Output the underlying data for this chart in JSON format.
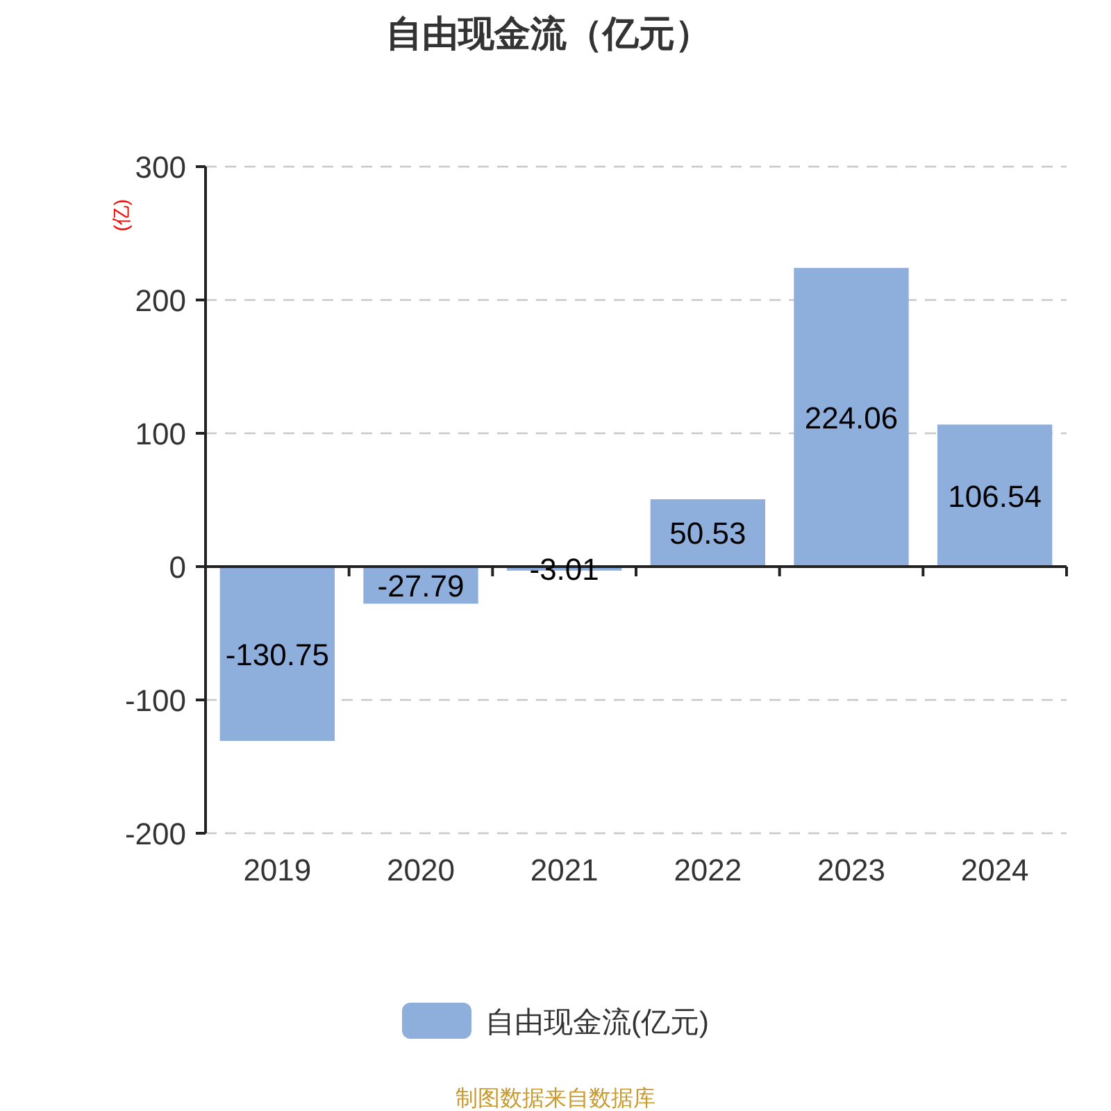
{
  "chart_data": {
    "type": "bar",
    "title": "自由现金流（亿元）",
    "ylabel": "(亿)",
    "categories": [
      "2019",
      "2020",
      "2021",
      "2022",
      "2023",
      "2024"
    ],
    "series": [
      {
        "name": "自由现金流(亿元)",
        "color": "#8eaedb",
        "values": [
          -130.75,
          -27.79,
          -3.01,
          50.53,
          224.06,
          106.54
        ]
      }
    ],
    "ylim": [
      -200,
      300
    ],
    "yticks": [
      -200,
      -100,
      0,
      100,
      200,
      300
    ],
    "grid": "y",
    "legend": "bottom",
    "data_labels": true,
    "annotations": [
      "制图数据来自数据库"
    ]
  }
}
